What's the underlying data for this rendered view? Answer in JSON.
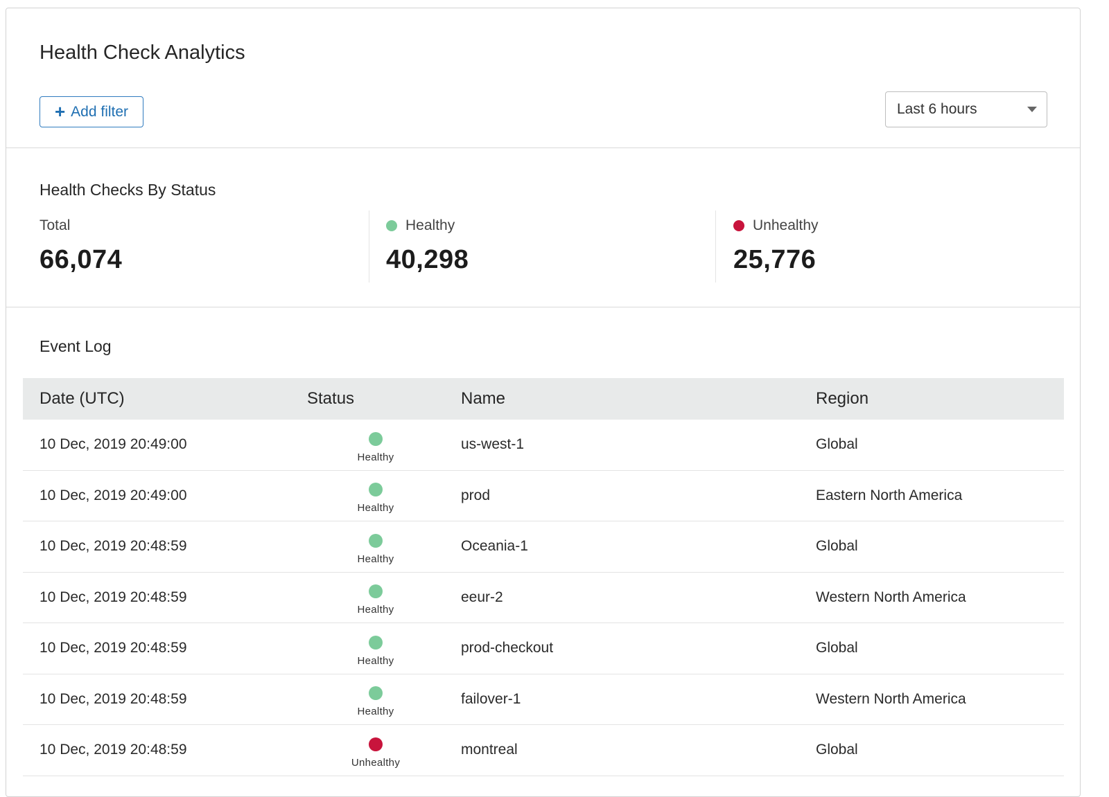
{
  "header": {
    "title": "Health Check Analytics",
    "add_filter_label": "Add filter",
    "time_range": "Last 6 hours"
  },
  "status_summary": {
    "title": "Health Checks By Status",
    "total": {
      "label": "Total",
      "value": "66,074"
    },
    "healthy": {
      "label": "Healthy",
      "value": "40,298",
      "color": "#7ccb9a"
    },
    "unhealthy": {
      "label": "Unhealthy",
      "value": "25,776",
      "color": "#c8143c"
    }
  },
  "event_log": {
    "title": "Event Log",
    "columns": {
      "date": "Date (UTC)",
      "status": "Status",
      "name": "Name",
      "region": "Region"
    },
    "rows": [
      {
        "date": "10 Dec, 2019 20:49:00",
        "status": "Healthy",
        "name": "us-west-1",
        "region": "Global"
      },
      {
        "date": "10 Dec, 2019 20:49:00",
        "status": "Healthy",
        "name": "prod",
        "region": "Eastern North America"
      },
      {
        "date": "10 Dec, 2019 20:48:59",
        "status": "Healthy",
        "name": "Oceania-1",
        "region": "Global"
      },
      {
        "date": "10 Dec, 2019 20:48:59",
        "status": "Healthy",
        "name": "eeur-2",
        "region": "Western North America"
      },
      {
        "date": "10 Dec, 2019 20:48:59",
        "status": "Healthy",
        "name": "prod-checkout",
        "region": "Global"
      },
      {
        "date": "10 Dec, 2019 20:48:59",
        "status": "Healthy",
        "name": "failover-1",
        "region": "Western North America"
      },
      {
        "date": "10 Dec, 2019 20:48:59",
        "status": "Unhealthy",
        "name": "montreal",
        "region": "Global"
      }
    ]
  }
}
